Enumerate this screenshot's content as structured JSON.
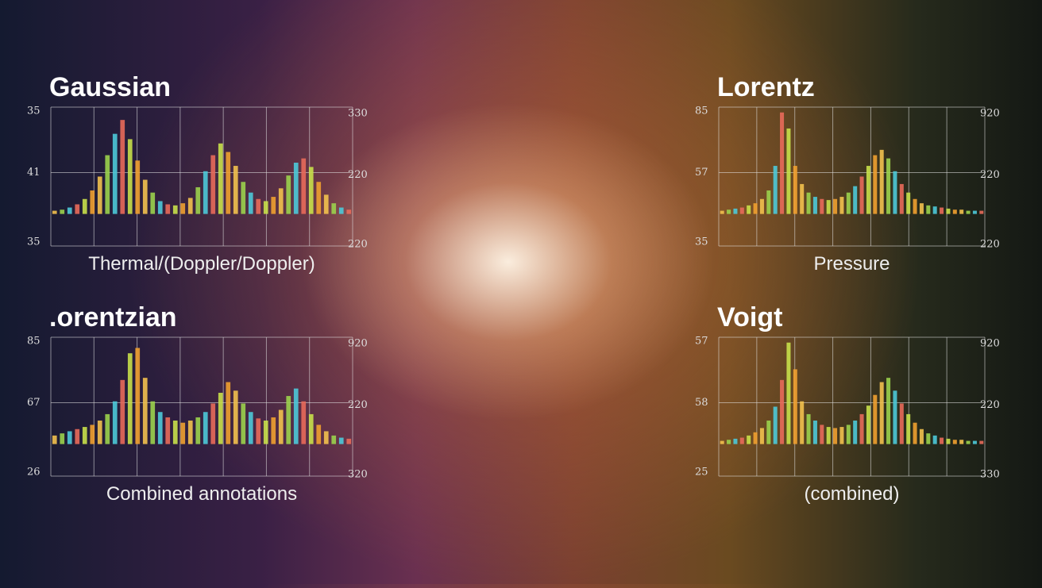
{
  "chart_data": [
    {
      "type": "bar",
      "title": "Gaussian",
      "caption": "Thermal/(Doppler/Doppler)",
      "left_axis_labels": [
        "35",
        "41",
        "35"
      ],
      "right_axis_labels": [
        "330",
        "220",
        "220"
      ],
      "ylim": [
        -30,
        100
      ],
      "values": [
        3,
        4,
        6,
        9,
        14,
        22,
        35,
        55,
        75,
        88,
        70,
        50,
        32,
        20,
        12,
        9,
        8,
        10,
        15,
        25,
        40,
        55,
        66,
        58,
        45,
        30,
        20,
        14,
        12,
        16,
        24,
        36,
        48,
        52,
        44,
        30,
        18,
        10,
        6,
        4
      ],
      "colors": [
        "#f2c14e",
        "#9bd14c",
        "#4cc9d8",
        "#e86a5a",
        "#c8e04a",
        "#f0a030"
      ]
    },
    {
      "type": "bar",
      "title": "Lorentz",
      "caption": "Pressure",
      "left_axis_labels": [
        "85",
        "57",
        "35"
      ],
      "right_axis_labels": [
        "920",
        "220",
        "220"
      ],
      "ylim": [
        -30,
        100
      ],
      "values": [
        3,
        4,
        5,
        6,
        8,
        10,
        14,
        22,
        45,
        95,
        80,
        45,
        28,
        20,
        16,
        14,
        13,
        14,
        16,
        20,
        26,
        35,
        45,
        55,
        60,
        52,
        40,
        28,
        20,
        14,
        10,
        8,
        7,
        6,
        5,
        4,
        4,
        3,
        3,
        3
      ],
      "colors": [
        "#f2c14e",
        "#9bd14c",
        "#4cc9d8",
        "#e86a5a",
        "#c8e04a",
        "#f0a030"
      ]
    },
    {
      "type": "bar",
      "title": ".orentzian",
      "caption": "Combined annotations",
      "left_axis_labels": [
        "85",
        "67",
        "26"
      ],
      "right_axis_labels": [
        "920",
        "220",
        "320"
      ],
      "ylim": [
        -30,
        100
      ],
      "values": [
        8,
        10,
        12,
        14,
        16,
        18,
        22,
        28,
        40,
        60,
        85,
        90,
        62,
        40,
        30,
        25,
        22,
        20,
        22,
        25,
        30,
        38,
        48,
        58,
        50,
        38,
        30,
        24,
        22,
        25,
        32,
        45,
        52,
        40,
        28,
        18,
        12,
        8,
        6,
        5
      ],
      "colors": [
        "#f2c14e",
        "#9bd14c",
        "#4cc9d8",
        "#e86a5a",
        "#c8e04a",
        "#f0a030"
      ]
    },
    {
      "type": "bar",
      "title": "Voigt",
      "caption": "(combined)",
      "left_axis_labels": [
        "57",
        "58",
        "25"
      ],
      "right_axis_labels": [
        "920",
        "220",
        "330"
      ],
      "ylim": [
        -30,
        100
      ],
      "values": [
        3,
        4,
        5,
        6,
        8,
        11,
        15,
        22,
        35,
        60,
        95,
        70,
        40,
        28,
        22,
        18,
        16,
        15,
        16,
        18,
        22,
        28,
        36,
        46,
        58,
        62,
        50,
        38,
        28,
        20,
        14,
        10,
        8,
        6,
        5,
        4,
        4,
        3,
        3,
        3
      ],
      "colors": [
        "#f2c14e",
        "#9bd14c",
        "#4cc9d8",
        "#e86a5a",
        "#c8e04a",
        "#f0a030"
      ]
    }
  ]
}
